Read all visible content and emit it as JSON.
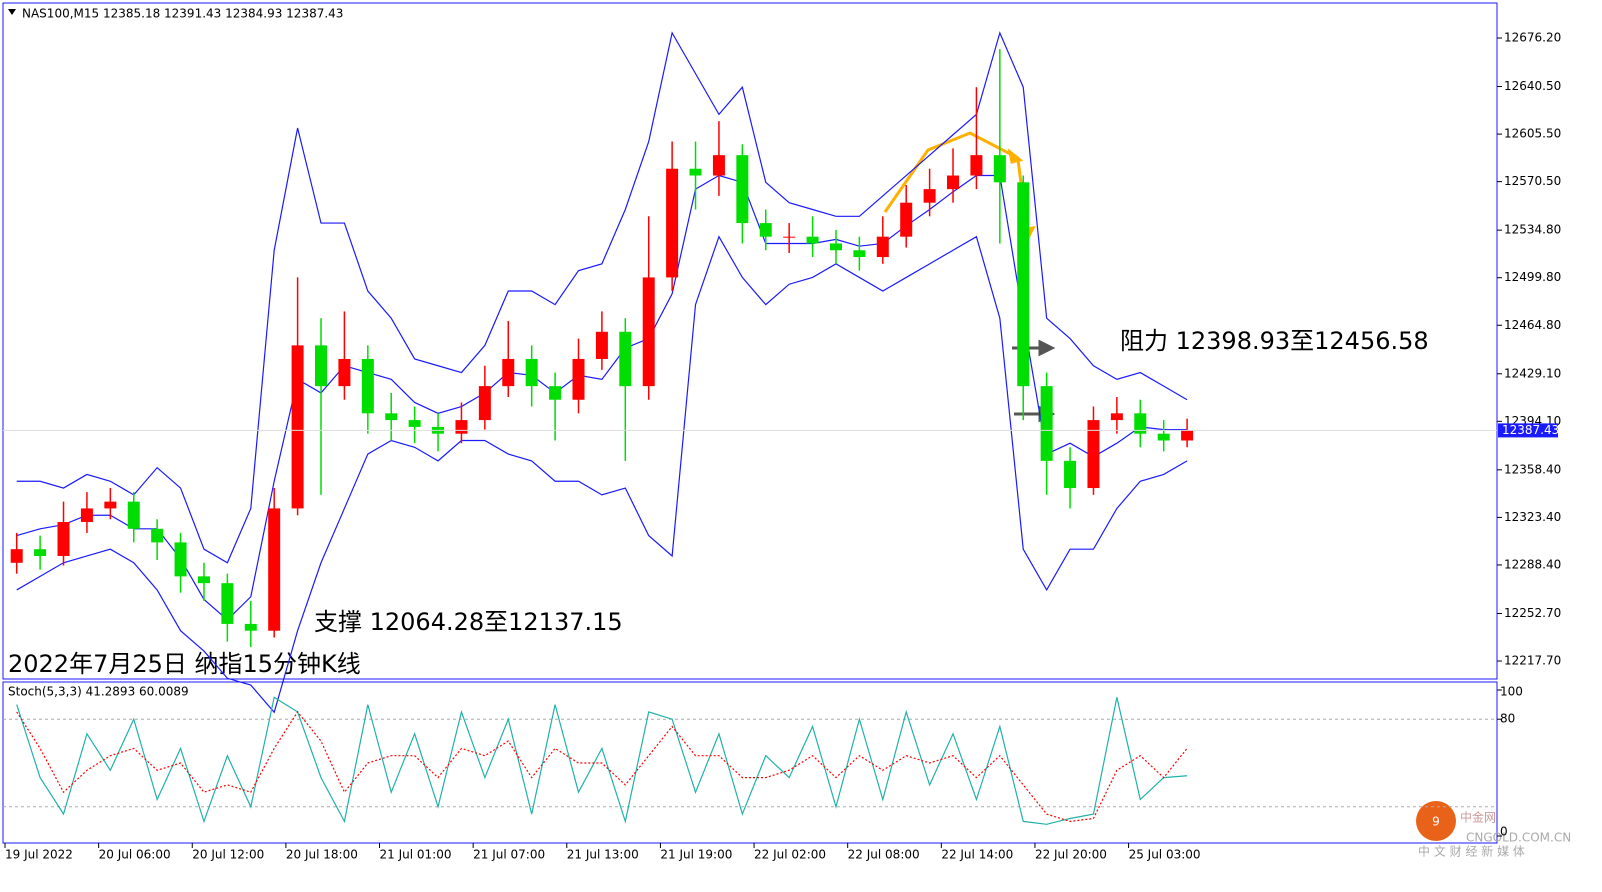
{
  "chart_data": [
    {
      "type": "candlestick",
      "title": "NAS100,M15  12385.18 12391.43 12384.93 12387.43",
      "up_color": "#ff0000",
      "down_color": "#00dd00",
      "grid": false,
      "xlim": [
        0,
        76
      ],
      "ylim": [
        12205.2,
        12700.5
      ],
      "xticks": [
        {
          "value": 0,
          "label": "19 Jul 2022"
        },
        {
          "value": 6,
          "label": "20 Jul 06:00"
        },
        {
          "value": 12,
          "label": "20 Jul 12:00"
        },
        {
          "value": 18,
          "label": "20 Jul 18:00"
        },
        {
          "value": 24,
          "label": "21 Jul 01:00"
        },
        {
          "value": 30,
          "label": "21 Jul 07:00"
        },
        {
          "value": 36,
          "label": "21 Jul 13:00"
        },
        {
          "value": 42,
          "label": "21 Jul 19:00"
        },
        {
          "value": 48,
          "label": "22 Jul 02:00"
        },
        {
          "value": 54,
          "label": "22 Jul 08:00"
        },
        {
          "value": 60,
          "label": "22 Jul 14:00"
        },
        {
          "value": 66,
          "label": "22 Jul 20:00"
        },
        {
          "value": 72,
          "label": "25 Jul 03:00"
        }
      ],
      "yticks": [
        {
          "value": 12676.2,
          "label": "12676.20"
        },
        {
          "value": 12640.5,
          "label": "12640.50"
        },
        {
          "value": 12605.5,
          "label": "12605.50"
        },
        {
          "value": 12570.5,
          "label": "12570.50"
        },
        {
          "value": 12534.8,
          "label": "12534.80"
        },
        {
          "value": 12499.8,
          "label": "12499.80"
        },
        {
          "value": 12464.8,
          "label": "12464.80"
        },
        {
          "value": 12429.1,
          "label": "12429.10"
        },
        {
          "value": 12394.1,
          "label": "12394.10"
        },
        {
          "value": 12358.4,
          "label": "12358.40"
        },
        {
          "value": 12323.4,
          "label": "12323.40"
        },
        {
          "value": 12288.4,
          "label": "12288.40"
        },
        {
          "value": 12252.7,
          "label": "12252.70"
        },
        {
          "value": 12217.7,
          "label": "12217.70"
        }
      ],
      "last_price": 12387.43,
      "x": [
        0.75,
        2.25,
        3.75,
        5.25,
        6.75,
        8.25,
        9.75,
        11.25,
        12.75,
        14.25,
        15.75,
        17.25,
        18.75,
        20.25,
        21.75,
        23.25,
        24.75,
        26.25,
        27.75,
        29.25,
        30.75,
        32.25,
        33.75,
        35.25,
        36.75,
        38.25,
        39.75,
        41.25,
        42.75,
        44.25,
        45.75,
        47.25,
        48.75,
        50.25,
        51.75,
        53.25,
        54.75,
        56.25,
        57.75,
        59.25,
        60.75,
        62.25,
        63.75,
        65.25,
        66.75,
        68.25,
        69.75,
        71.25,
        72.75,
        74.25,
        75.75
      ],
      "open": [
        12290,
        12300,
        12295,
        12320,
        12330,
        12335,
        12315,
        12305,
        12280,
        12275,
        12245,
        12240,
        12330,
        12450,
        12420,
        12440,
        12400,
        12395,
        12390,
        12385,
        12395,
        12420,
        12440,
        12420,
        12410,
        12440,
        12460,
        12420,
        12500,
        12580,
        12575,
        12590,
        12540,
        12530,
        12530,
        12525,
        12520,
        12515,
        12530,
        12555,
        12565,
        12575,
        12590,
        12570,
        12420,
        12365,
        12345,
        12395,
        12400,
        12385,
        12380
      ],
      "high": [
        12312,
        12310,
        12335,
        12342,
        12345,
        12342,
        12322,
        12312,
        12290,
        12282,
        12262,
        12345,
        12500,
        12470,
        12475,
        12450,
        12415,
        12405,
        12400,
        12408,
        12435,
        12468,
        12450,
        12430,
        12455,
        12475,
        12470,
        12545,
        12600,
        12600,
        12615,
        12598,
        12550,
        12540,
        12545,
        12535,
        12530,
        12545,
        12568,
        12580,
        12595,
        12640,
        12668,
        12575,
        12430,
        12375,
        12405,
        12412,
        12410,
        12395,
        12396
      ],
      "low": [
        12282,
        12285,
        12288,
        12312,
        12322,
        12305,
        12292,
        12268,
        12262,
        12232,
        12228,
        12235,
        12325,
        12340,
        12410,
        12385,
        12380,
        12378,
        12372,
        12378,
        12388,
        12412,
        12405,
        12380,
        12400,
        12432,
        12365,
        12410,
        12490,
        12550,
        12560,
        12525,
        12520,
        12518,
        12515,
        12510,
        12505,
        12510,
        12522,
        12545,
        12555,
        12565,
        12525,
        12395,
        12340,
        12330,
        12340,
        12385,
        12375,
        12372,
        12375
      ],
      "close": [
        12300,
        12295,
        12320,
        12330,
        12335,
        12315,
        12305,
        12280,
        12275,
        12245,
        12240,
        12330,
        12450,
        12420,
        12440,
        12400,
        12395,
        12390,
        12385,
        12395,
        12420,
        12440,
        12420,
        12410,
        12440,
        12460,
        12420,
        12500,
        12580,
        12575,
        12590,
        12540,
        12530,
        12530,
        12525,
        12520,
        12515,
        12530,
        12555,
        12565,
        12575,
        12590,
        12570,
        12420,
        12365,
        12345,
        12395,
        12400,
        12385,
        12380,
        12387.43
      ],
      "bands": [
        {
          "color": "#1a1aff",
          "values": [
            12350,
            12350,
            12345,
            12355,
            12350,
            12340,
            12360,
            12345,
            12300,
            12290,
            12330,
            12520,
            12610,
            12540,
            12540,
            12490,
            12470,
            12440,
            12435,
            12430,
            12450,
            12490,
            12490,
            12480,
            12505,
            12510,
            12550,
            12600,
            12680,
            12650,
            12620,
            12640,
            12570,
            12555,
            12550,
            12545,
            12545,
            12560,
            12575,
            12590,
            12605,
            12620,
            12680,
            12640,
            12470,
            12455,
            12435,
            12425,
            12430,
            12420,
            12410
          ]
        },
        {
          "color": "#1a1aff",
          "values": [
            12310,
            12315,
            12318,
            12325,
            12325,
            12315,
            12315,
            12293,
            12263,
            12248,
            12265,
            12350,
            12425,
            12415,
            12435,
            12430,
            12425,
            12408,
            12400,
            12405,
            12415,
            12430,
            12428,
            12415,
            12428,
            12425,
            12448,
            12455,
            12488,
            12565,
            12575,
            12570,
            12525,
            12525,
            12525,
            12528,
            12523,
            12525,
            12538,
            12550,
            12563,
            12575,
            12575,
            12470,
            12370,
            12378,
            12368,
            12378,
            12390,
            12388,
            12388
          ]
        },
        {
          "color": "#1a1aff",
          "values": [
            12270,
            12280,
            12290,
            12295,
            12300,
            12290,
            12270,
            12240,
            12225,
            12205,
            12200,
            12180,
            12240,
            12290,
            12330,
            12370,
            12380,
            12375,
            12365,
            12380,
            12380,
            12370,
            12365,
            12350,
            12350,
            12340,
            12345,
            12310,
            12295,
            12480,
            12530,
            12500,
            12480,
            12495,
            12500,
            12510,
            12500,
            12490,
            12500,
            12510,
            12520,
            12530,
            12470,
            12300,
            12270,
            12300,
            12300,
            12330,
            12350,
            12355,
            12365
          ]
        }
      ],
      "annotations": [
        "阻力 12398.93至12456.58",
        "支撑 12064.28至12137.15",
        "2022年7月25日 纳指15分钟K线"
      ]
    },
    {
      "type": "oscillator",
      "title": "Stoch(5,3,3) 41.2893 60.0089",
      "ylim": [
        -4.8,
        104.8
      ],
      "yticks": [
        100,
        80,
        0
      ],
      "levels": [
        80,
        20
      ],
      "series": [
        {
          "color": "#20b2aa",
          "style": "solid",
          "values": [
            90,
            40,
            15,
            70,
            45,
            80,
            25,
            60,
            10,
            55,
            20,
            95,
            85,
            40,
            10,
            90,
            30,
            70,
            20,
            85,
            40,
            80,
            15,
            90,
            30,
            60,
            10,
            85,
            80,
            30,
            70,
            15,
            55,
            40,
            75,
            20,
            80,
            25,
            85,
            35,
            70,
            25,
            75,
            10,
            8,
            12,
            15,
            95,
            25,
            40,
            41.2893
          ]
        },
        {
          "color": "#ff0000",
          "style": "dotted",
          "values": [
            85,
            60,
            30,
            45,
            55,
            60,
            45,
            50,
            30,
            35,
            30,
            60,
            85,
            65,
            30,
            50,
            55,
            55,
            40,
            60,
            55,
            65,
            40,
            60,
            50,
            50,
            35,
            55,
            75,
            55,
            55,
            40,
            40,
            45,
            55,
            40,
            55,
            45,
            55,
            50,
            55,
            40,
            55,
            35,
            15,
            10,
            12,
            45,
            55,
            40,
            60.0089
          ]
        }
      ]
    }
  ],
  "watermark": {
    "brand": "中金网",
    "site": "CNGOLD.COM.CN",
    "slogan": "中 文 财 经 新 媒 体"
  }
}
